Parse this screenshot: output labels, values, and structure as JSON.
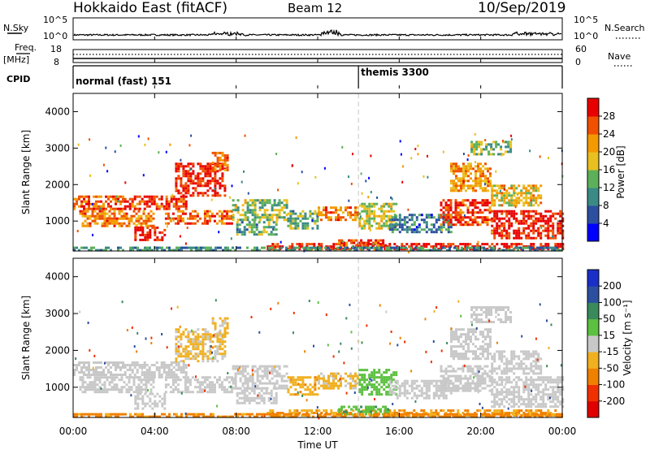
{
  "header": {
    "station": "Hokkaido East (fitACF)",
    "beam": "Beam 12",
    "date": "10/Sep/2019"
  },
  "nsky_panel": {
    "left_label": "N.Sky",
    "right_label": "N.Search",
    "left_ticks": [
      "10^5",
      "10^0"
    ],
    "right_ticks": [
      "10^5",
      "10^0"
    ]
  },
  "freq_panel": {
    "left_label_line1": "Freq.",
    "left_label_line2": "[MHz]",
    "right_label": "Nave",
    "left_ticks": [
      "18",
      "8"
    ],
    "right_ticks": [
      "60",
      "0"
    ]
  },
  "cpid_panel": {
    "label": "CPID",
    "segments": [
      {
        "name": "normal (fast) 151",
        "start_hour": 0
      },
      {
        "name": "themis 3300",
        "start_hour": 14
      }
    ]
  },
  "x_axis": {
    "label": "Time UT",
    "ticks": [
      "00:00",
      "04:00",
      "08:00",
      "12:00",
      "16:00",
      "20:00",
      "00:00"
    ],
    "range_hours": [
      0,
      24
    ]
  },
  "power_panel": {
    "ylabel": "Slant Range [km]",
    "yticks": [
      "1000",
      "2000",
      "3000",
      "4000"
    ],
    "colorbar_label": "Power [dB]",
    "colorbar_ticks": [
      "4",
      "8",
      "12",
      "16",
      "20",
      "24",
      "28"
    ],
    "colors": [
      "#0000ff",
      "#2c4fa0",
      "#3a8a86",
      "#5db05a",
      "#e8c020",
      "#f39a00",
      "#f05000",
      "#e80000"
    ]
  },
  "velocity_panel": {
    "ylabel": "Slant Range [km]",
    "yticks": [
      "1000",
      "2000",
      "3000",
      "4000"
    ],
    "colorbar_label": "Velocity [m s⁻¹]",
    "colorbar_ticks": [
      "200",
      "100",
      "50",
      "15",
      "-15",
      "-50",
      "-100",
      "-200"
    ],
    "colors": [
      "#1a2fc8",
      "#2c4fa0",
      "#3a8a5c",
      "#5cc040",
      "#c8c8c8",
      "#f0b020",
      "#f08000",
      "#f03000",
      "#e00000"
    ]
  },
  "chart_data": {
    "type": "heatmap",
    "x_unit": "hours UT",
    "y_unit": "km",
    "y_range_km": [
      180,
      4500
    ],
    "power_db_range": [
      0,
      30
    ],
    "velocity_range_ms": [
      -250,
      250
    ],
    "scatter_regions": [
      {
        "t0": 0.0,
        "t1": 2.5,
        "r0": 1350,
        "r1": 1700,
        "power_db": 24,
        "velocity_ms": 0
      },
      {
        "t0": 2.5,
        "t1": 5.5,
        "r0": 1300,
        "r1": 1700,
        "power_db": 26,
        "velocity_ms": 0
      },
      {
        "t0": 0.3,
        "t1": 4.0,
        "r0": 850,
        "r1": 1300,
        "power_db": 22,
        "velocity_ms": 0
      },
      {
        "t0": 3.0,
        "t1": 4.5,
        "r0": 450,
        "r1": 850,
        "power_db": 28,
        "velocity_ms": 0
      },
      {
        "t0": 4.5,
        "t1": 7.8,
        "r0": 900,
        "r1": 1300,
        "power_db": 24,
        "velocity_ms": 0
      },
      {
        "t0": 5.0,
        "t1": 7.5,
        "r0": 1700,
        "r1": 2600,
        "power_db": 28,
        "velocity_ms": -20
      },
      {
        "t0": 6.8,
        "t1": 7.6,
        "r0": 2400,
        "r1": 2900,
        "power_db": 22,
        "velocity_ms": -20
      },
      {
        "t0": 7.8,
        "t1": 10.5,
        "r0": 1000,
        "r1": 1600,
        "power_db": 14,
        "velocity_ms": 0
      },
      {
        "t0": 8.0,
        "t1": 10.0,
        "r0": 600,
        "r1": 1000,
        "power_db": 12,
        "velocity_ms": 0
      },
      {
        "t0": 10.5,
        "t1": 12.0,
        "r0": 800,
        "r1": 1300,
        "power_db": 12,
        "velocity_ms": -40
      },
      {
        "t0": 12.0,
        "t1": 14.0,
        "r0": 1000,
        "r1": 1400,
        "power_db": 22,
        "velocity_ms": -20
      },
      {
        "t0": 14.0,
        "t1": 15.8,
        "r0": 800,
        "r1": 1500,
        "power_db": 16,
        "velocity_ms": 30
      },
      {
        "t0": 15.5,
        "t1": 18.5,
        "r0": 700,
        "r1": 1200,
        "power_db": 8,
        "velocity_ms": 0
      },
      {
        "t0": 18.0,
        "t1": 20.5,
        "r0": 900,
        "r1": 1600,
        "power_db": 26,
        "velocity_ms": 0
      },
      {
        "t0": 18.5,
        "t1": 20.5,
        "r0": 1800,
        "r1": 2600,
        "power_db": 20,
        "velocity_ms": 0
      },
      {
        "t0": 19.5,
        "t1": 21.5,
        "r0": 2800,
        "r1": 3200,
        "power_db": 14,
        "velocity_ms": 0
      },
      {
        "t0": 20.5,
        "t1": 24.0,
        "r0": 500,
        "r1": 1300,
        "power_db": 28,
        "velocity_ms": 0
      },
      {
        "t0": 20.5,
        "t1": 23.0,
        "r0": 1400,
        "r1": 2000,
        "power_db": 18,
        "velocity_ms": 0
      },
      {
        "t0": 9.5,
        "t1": 24.0,
        "r0": 250,
        "r1": 400,
        "power_db": 28,
        "velocity_ms": -50
      },
      {
        "t0": 13.0,
        "t1": 15.5,
        "r0": 300,
        "r1": 500,
        "power_db": 26,
        "velocity_ms": 40
      },
      {
        "t0": 0.0,
        "t1": 24.0,
        "r0": 180,
        "r1": 300,
        "power_db": 10,
        "velocity_ms": -60
      }
    ]
  }
}
